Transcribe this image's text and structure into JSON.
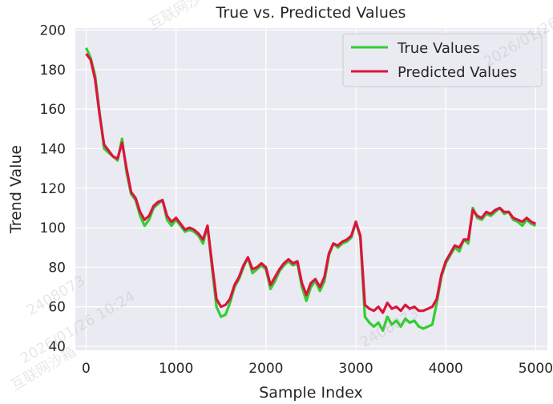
{
  "chart_data": {
    "type": "line",
    "title": "True vs. Predicted Values",
    "xlabel": "Sample Index",
    "ylabel": "Trend Value",
    "xlim": [
      -120,
      5130
    ],
    "ylim": [
      38,
      201
    ],
    "xticks": [
      0,
      1000,
      2000,
      3000,
      4000,
      5000
    ],
    "yticks": [
      40,
      60,
      80,
      100,
      120,
      140,
      160,
      180,
      200
    ],
    "grid": true,
    "legend_position": "top-right",
    "series": [
      {
        "name": "True Values",
        "color": "#32cd32",
        "x": [
          0,
          50,
          100,
          150,
          200,
          250,
          300,
          350,
          400,
          450,
          500,
          550,
          600,
          650,
          700,
          750,
          800,
          850,
          900,
          950,
          1000,
          1050,
          1100,
          1150,
          1200,
          1250,
          1300,
          1350,
          1400,
          1450,
          1500,
          1550,
          1600,
          1650,
          1700,
          1750,
          1800,
          1850,
          1900,
          1950,
          2000,
          2050,
          2100,
          2150,
          2200,
          2250,
          2300,
          2350,
          2400,
          2450,
          2500,
          2550,
          2600,
          2650,
          2700,
          2750,
          2800,
          2850,
          2900,
          2950,
          3000,
          3050,
          3100,
          3150,
          3200,
          3250,
          3300,
          3350,
          3400,
          3450,
          3500,
          3550,
          3600,
          3650,
          3700,
          3750,
          3800,
          3850,
          3900,
          3950,
          4000,
          4050,
          4100,
          4150,
          4200,
          4250,
          4300,
          4350,
          4400,
          4450,
          4500,
          4550,
          4600,
          4650,
          4700,
          4750,
          4800,
          4850,
          4900,
          4950,
          5000
        ],
        "y": [
          191,
          186,
          177,
          158,
          140,
          138,
          136,
          134,
          145,
          128,
          117,
          114,
          106,
          101,
          104,
          110,
          112,
          114,
          104,
          101,
          104,
          101,
          98,
          99,
          98,
          96,
          92,
          101,
          80,
          60,
          55,
          56,
          62,
          70,
          74,
          80,
          85,
          77,
          79,
          81,
          79,
          69,
          73,
          78,
          81,
          83,
          81,
          82,
          70,
          63,
          70,
          73,
          68,
          73,
          86,
          92,
          90,
          92,
          93,
          95,
          103,
          95,
          55,
          52,
          50,
          52,
          48,
          55,
          51,
          53,
          50,
          54,
          52,
          53,
          50,
          49,
          50,
          51,
          62,
          75,
          82,
          86,
          90,
          88,
          94,
          92,
          110,
          105,
          104,
          107,
          106,
          108,
          110,
          107,
          108,
          104,
          103,
          101,
          104,
          102,
          101
        ]
      },
      {
        "name": "Predicted Values",
        "color": "#dc143c",
        "x": [
          0,
          50,
          100,
          150,
          200,
          250,
          300,
          350,
          400,
          450,
          500,
          550,
          600,
          650,
          700,
          750,
          800,
          850,
          900,
          950,
          1000,
          1050,
          1100,
          1150,
          1200,
          1250,
          1300,
          1350,
          1400,
          1450,
          1500,
          1550,
          1600,
          1650,
          1700,
          1750,
          1800,
          1850,
          1900,
          1950,
          2000,
          2050,
          2100,
          2150,
          2200,
          2250,
          2300,
          2350,
          2400,
          2450,
          2500,
          2550,
          2600,
          2650,
          2700,
          2750,
          2800,
          2850,
          2900,
          2950,
          3000,
          3050,
          3100,
          3150,
          3200,
          3250,
          3300,
          3350,
          3400,
          3450,
          3500,
          3550,
          3600,
          3650,
          3700,
          3750,
          3800,
          3850,
          3900,
          3950,
          4000,
          4050,
          4100,
          4150,
          4200,
          4250,
          4300,
          4350,
          4400,
          4450,
          4500,
          4550,
          4600,
          4650,
          4700,
          4750,
          4800,
          4850,
          4900,
          4950,
          5000
        ],
        "y": [
          188,
          185,
          175,
          157,
          142,
          139,
          136,
          135,
          143,
          130,
          118,
          115,
          108,
          104,
          106,
          111,
          113,
          114,
          106,
          103,
          105,
          102,
          99,
          100,
          99,
          97,
          94,
          101,
          82,
          64,
          60,
          61,
          64,
          71,
          75,
          81,
          85,
          79,
          80,
          82,
          80,
          71,
          75,
          79,
          82,
          84,
          82,
          83,
          72,
          66,
          72,
          74,
          70,
          75,
          87,
          92,
          91,
          93,
          94,
          96,
          103,
          96,
          61,
          59,
          58,
          60,
          57,
          62,
          59,
          60,
          58,
          61,
          59,
          60,
          58,
          58,
          59,
          60,
          64,
          76,
          83,
          87,
          91,
          90,
          94,
          94,
          109,
          106,
          105,
          108,
          107,
          109,
          110,
          108,
          108,
          105,
          104,
          103,
          105,
          103,
          102
        ]
      }
    ]
  },
  "watermarks": [
    "互联网沙箱",
    "2408073",
    "2026/01/26 10:24",
    "2408073",
    "2026/01/26 10:24",
    "互联网沙箱"
  ]
}
